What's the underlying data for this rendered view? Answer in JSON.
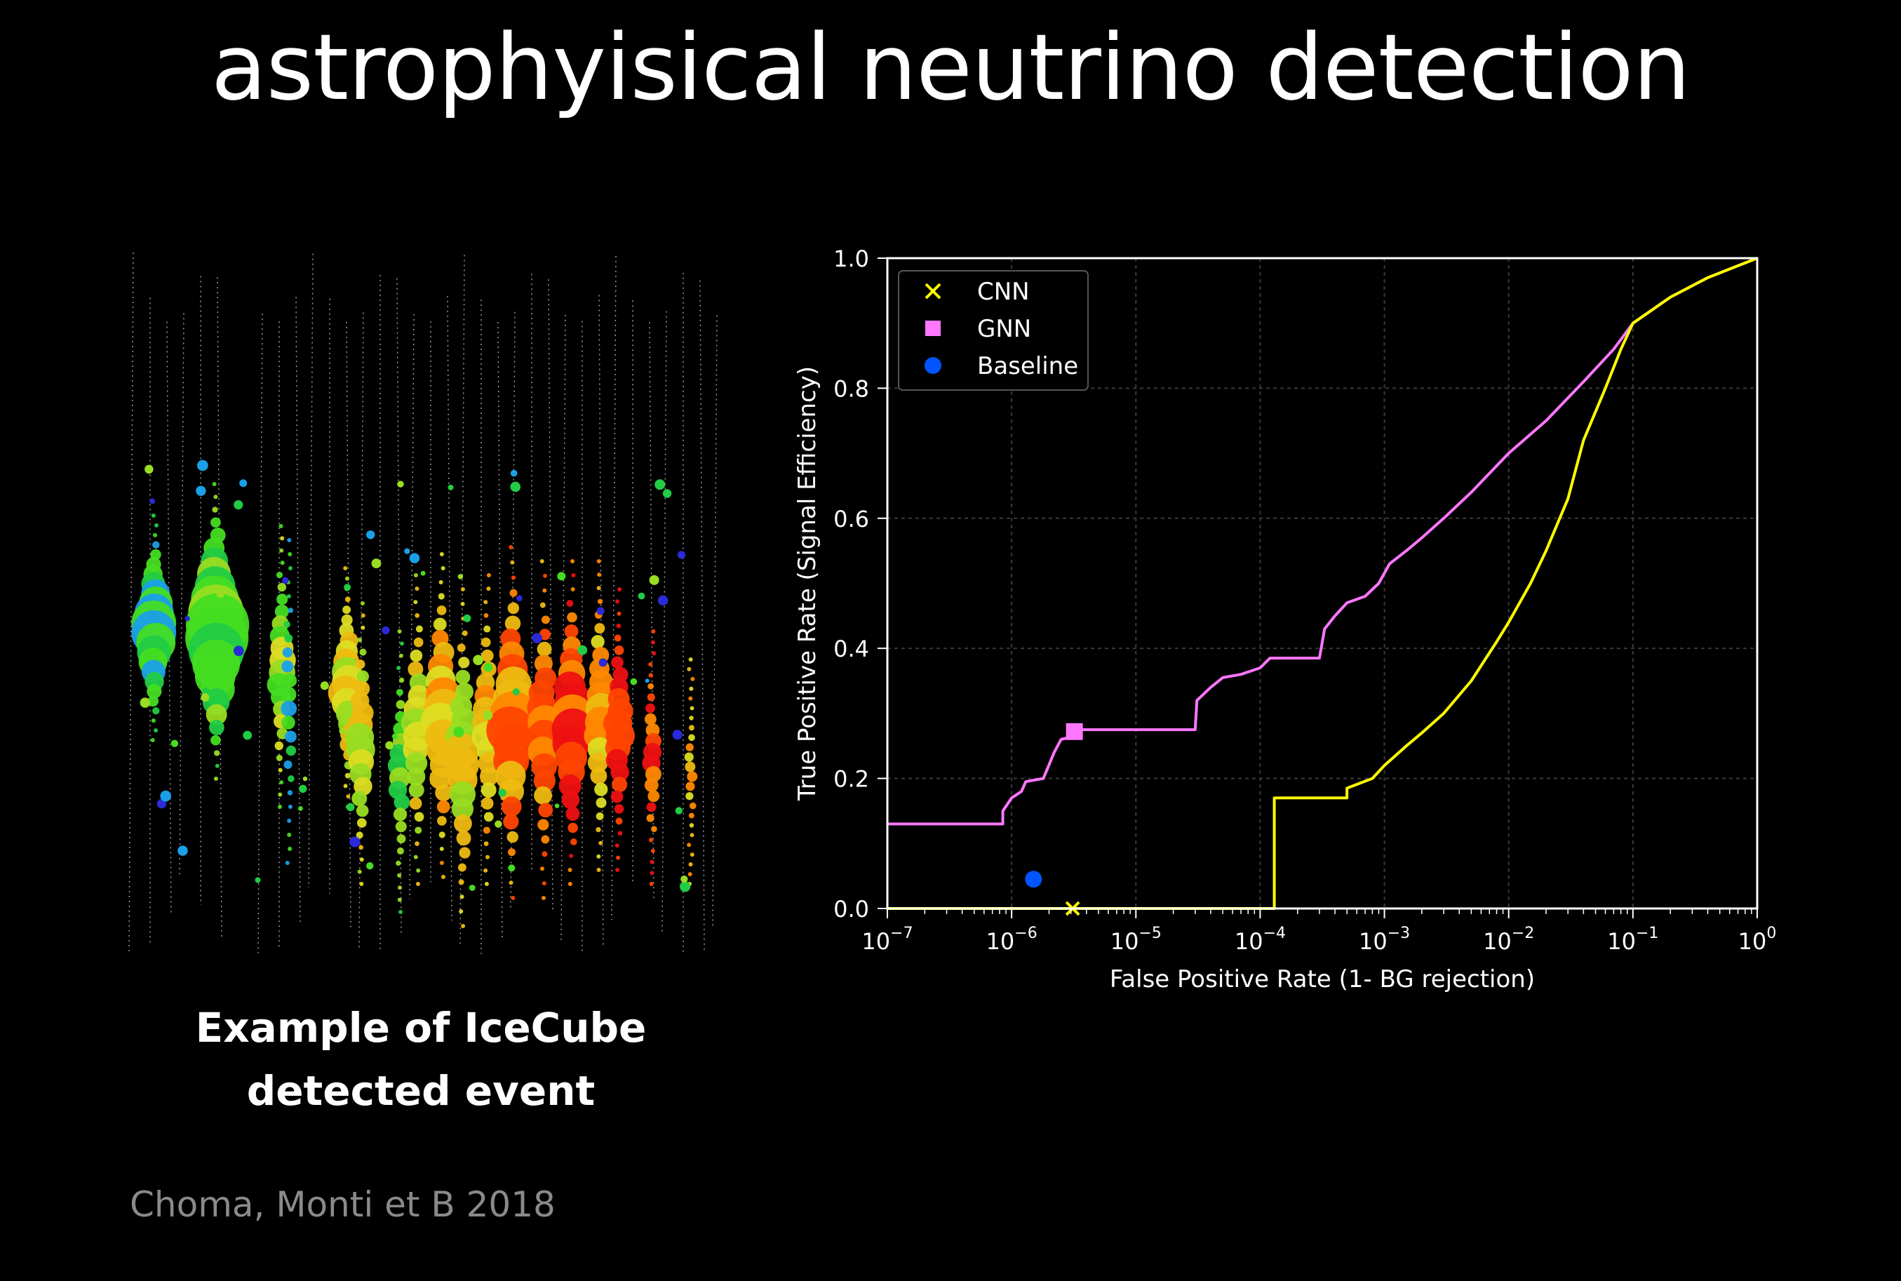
{
  "slide": {
    "title": "astrophyisical neutrino detection",
    "caption_line1": "Example of IceCube",
    "caption_line2": "detected event",
    "credit": "Choma, Monti et B 2018"
  },
  "event_display": {
    "colors": [
      "#2a2ad8",
      "#1aa0e8",
      "#22cc44",
      "#44dd22",
      "#99dd22",
      "#dddd22",
      "#eebb11",
      "#ff8800",
      "#ff4400",
      "#ee1111"
    ]
  },
  "chart_data": {
    "type": "line",
    "title": "",
    "xlabel": "False Positive Rate (1- BG rejection)",
    "ylabel": "True Positive Rate (Signal Efficiency)",
    "xscale": "log",
    "xlim": [
      1e-07,
      1
    ],
    "ylim": [
      0,
      1
    ],
    "grid": true,
    "legend_position": "top-left",
    "x_ticks": [
      {
        "base": "10",
        "exp": "−7"
      },
      {
        "base": "10",
        "exp": "−6"
      },
      {
        "base": "10",
        "exp": "−5"
      },
      {
        "base": "10",
        "exp": "−4"
      },
      {
        "base": "10",
        "exp": "−3"
      },
      {
        "base": "10",
        "exp": "−2"
      },
      {
        "base": "10",
        "exp": "−1"
      },
      {
        "base": "10",
        "exp": "0"
      }
    ],
    "y_ticks": [
      "0.0",
      "0.2",
      "0.4",
      "0.6",
      "0.8",
      "1.0"
    ],
    "legend": [
      {
        "label": "CNN",
        "marker": "x",
        "color": "#ffff00"
      },
      {
        "label": "GNN",
        "marker": "square",
        "color": "#ff77ff"
      },
      {
        "label": "Baseline",
        "marker": "circle",
        "color": "#0055ff"
      }
    ],
    "series": [
      {
        "name": "GNN",
        "color": "#ff77ff",
        "points": [
          [
            1e-07,
            0.13
          ],
          [
            8.5e-07,
            0.13
          ],
          [
            8.5e-07,
            0.15
          ],
          [
            1e-06,
            0.17
          ],
          [
            1.2e-06,
            0.18
          ],
          [
            1.3e-06,
            0.195
          ],
          [
            1.8e-06,
            0.2
          ],
          [
            2.2e-06,
            0.24
          ],
          [
            2.5e-06,
            0.26
          ],
          [
            3.2e-06,
            0.265
          ],
          [
            3.3e-06,
            0.275
          ],
          [
            3e-05,
            0.275
          ],
          [
            3.1e-05,
            0.32
          ],
          [
            4e-05,
            0.34
          ],
          [
            5e-05,
            0.355
          ],
          [
            7e-05,
            0.36
          ],
          [
            0.0001,
            0.37
          ],
          [
            0.00012,
            0.385
          ],
          [
            0.0003,
            0.385
          ],
          [
            0.00033,
            0.43
          ],
          [
            0.0004,
            0.45
          ],
          [
            0.0005,
            0.47
          ],
          [
            0.0007,
            0.48
          ],
          [
            0.0009,
            0.5
          ],
          [
            0.0011,
            0.53
          ],
          [
            0.0015,
            0.55
          ],
          [
            0.002,
            0.57
          ],
          [
            0.003,
            0.6
          ],
          [
            0.005,
            0.64
          ],
          [
            0.01,
            0.7
          ],
          [
            0.02,
            0.75
          ],
          [
            0.04,
            0.81
          ],
          [
            0.07,
            0.86
          ],
          [
            0.1,
            0.9
          ],
          [
            0.2,
            0.94
          ],
          [
            0.4,
            0.97
          ],
          [
            1,
            1.0
          ]
        ]
      },
      {
        "name": "CNN",
        "color": "#ffff00",
        "points": [
          [
            1e-07,
            0.0
          ],
          [
            0.00013,
            0.0
          ],
          [
            0.00013,
            0.17
          ],
          [
            0.0005,
            0.17
          ],
          [
            0.0005,
            0.185
          ],
          [
            0.0008,
            0.2
          ],
          [
            0.001,
            0.22
          ],
          [
            0.0015,
            0.25
          ],
          [
            0.002,
            0.27
          ],
          [
            0.003,
            0.3
          ],
          [
            0.005,
            0.35
          ],
          [
            0.008,
            0.41
          ],
          [
            0.01,
            0.44
          ],
          [
            0.015,
            0.5
          ],
          [
            0.02,
            0.55
          ],
          [
            0.03,
            0.63
          ],
          [
            0.04,
            0.72
          ],
          [
            0.06,
            0.8
          ],
          [
            0.08,
            0.86
          ],
          [
            0.1,
            0.9
          ],
          [
            0.2,
            0.94
          ],
          [
            0.4,
            0.97
          ],
          [
            1,
            1.0
          ]
        ]
      }
    ],
    "markers": [
      {
        "name": "GNN",
        "shape": "square",
        "color": "#ff77ff",
        "x": 3.2e-06,
        "y": 0.272
      },
      {
        "name": "CNN",
        "shape": "x",
        "color": "#ffff00",
        "x": 3.1e-06,
        "y": 0.0
      },
      {
        "name": "Baseline",
        "shape": "circle",
        "color": "#0055ff",
        "x": 1.5e-06,
        "y": 0.045
      }
    ]
  }
}
